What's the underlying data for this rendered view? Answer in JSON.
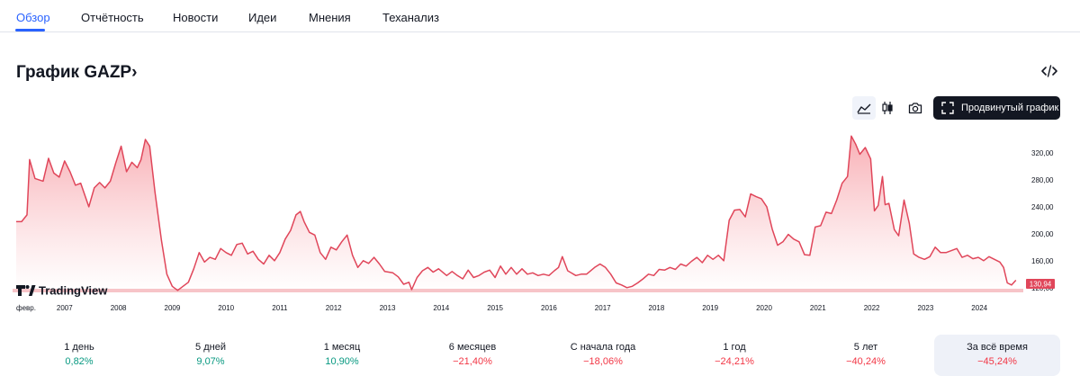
{
  "tabs": [
    {
      "label": "Обзор",
      "active": true
    },
    {
      "label": "Отчётность",
      "active": false
    },
    {
      "label": "Новости",
      "active": false
    },
    {
      "label": "Идеи",
      "active": false
    },
    {
      "label": "Мнения",
      "active": false
    },
    {
      "label": "Теханализ",
      "active": false
    }
  ],
  "header": {
    "title": "График GAZP",
    "chevron": "›",
    "embed_icon": "code-icon"
  },
  "toolbar": {
    "area_icon": "area-chart-icon",
    "candle_icon": "candlestick-icon",
    "camera_icon": "camera-icon",
    "advanced_label": "Продвинутый график",
    "advanced_icon": "fullscreen-icon"
  },
  "watermark": {
    "text": "TradingView"
  },
  "chart_data": {
    "type": "area",
    "series_name": "GAZP",
    "x_ticks": [
      "февр.",
      "2007",
      "2008",
      "2009",
      "2010",
      "2011",
      "2012",
      "2013",
      "2014",
      "2015",
      "2016",
      "2017",
      "2018",
      "2019",
      "2020",
      "2021",
      "2022",
      "2023",
      "2024"
    ],
    "y_ticks": [
      "320,00",
      "280,00",
      "240,00",
      "200,00",
      "160,00",
      "120,00"
    ],
    "ylim": [
      113,
      360
    ],
    "xlim": [
      2006.1,
      2024.75
    ],
    "last_value": "130,94",
    "colors": {
      "line": "#e0465a",
      "fill_top": "#f7a1a8",
      "fill_bottom": "#ffffff",
      "label_bg": "#e0465a",
      "label_text": "#ffffff"
    },
    "points": [
      [
        2006.1,
        218
      ],
      [
        2006.2,
        218
      ],
      [
        2006.3,
        228
      ],
      [
        2006.35,
        310
      ],
      [
        2006.45,
        282
      ],
      [
        2006.6,
        278
      ],
      [
        2006.7,
        312
      ],
      [
        2006.8,
        290
      ],
      [
        2006.9,
        284
      ],
      [
        2007.0,
        308
      ],
      [
        2007.1,
        292
      ],
      [
        2007.2,
        272
      ],
      [
        2007.3,
        275
      ],
      [
        2007.45,
        240
      ],
      [
        2007.55,
        268
      ],
      [
        2007.65,
        276
      ],
      [
        2007.75,
        268
      ],
      [
        2007.85,
        278
      ],
      [
        2007.95,
        305
      ],
      [
        2008.05,
        330
      ],
      [
        2008.15,
        292
      ],
      [
        2008.25,
        306
      ],
      [
        2008.35,
        298
      ],
      [
        2008.42,
        310
      ],
      [
        2008.5,
        340
      ],
      [
        2008.58,
        330
      ],
      [
        2008.68,
        262
      ],
      [
        2008.8,
        190
      ],
      [
        2008.9,
        140
      ],
      [
        2009.0,
        122
      ],
      [
        2009.1,
        116
      ],
      [
        2009.2,
        122
      ],
      [
        2009.3,
        128
      ],
      [
        2009.4,
        148
      ],
      [
        2009.5,
        172
      ],
      [
        2009.6,
        158
      ],
      [
        2009.7,
        165
      ],
      [
        2009.8,
        162
      ],
      [
        2009.9,
        178
      ],
      [
        2010.0,
        172
      ],
      [
        2010.1,
        168
      ],
      [
        2010.2,
        184
      ],
      [
        2010.3,
        186
      ],
      [
        2010.4,
        170
      ],
      [
        2010.5,
        174
      ],
      [
        2010.6,
        162
      ],
      [
        2010.7,
        155
      ],
      [
        2010.8,
        168
      ],
      [
        2010.9,
        160
      ],
      [
        2011.0,
        172
      ],
      [
        2011.1,
        192
      ],
      [
        2011.2,
        205
      ],
      [
        2011.3,
        228
      ],
      [
        2011.38,
        233
      ],
      [
        2011.45,
        218
      ],
      [
        2011.55,
        202
      ],
      [
        2011.65,
        198
      ],
      [
        2011.75,
        172
      ],
      [
        2011.85,
        162
      ],
      [
        2011.95,
        180
      ],
      [
        2012.05,
        176
      ],
      [
        2012.15,
        188
      ],
      [
        2012.25,
        198
      ],
      [
        2012.35,
        168
      ],
      [
        2012.45,
        150
      ],
      [
        2012.55,
        160
      ],
      [
        2012.65,
        156
      ],
      [
        2012.75,
        165
      ],
      [
        2012.85,
        155
      ],
      [
        2012.95,
        144
      ],
      [
        2013.1,
        142
      ],
      [
        2013.2,
        136
      ],
      [
        2013.3,
        125
      ],
      [
        2013.4,
        128
      ],
      [
        2013.45,
        117
      ],
      [
        2013.55,
        135
      ],
      [
        2013.65,
        145
      ],
      [
        2013.75,
        150
      ],
      [
        2013.85,
        143
      ],
      [
        2013.95,
        148
      ],
      [
        2014.1,
        138
      ],
      [
        2014.2,
        144
      ],
      [
        2014.3,
        138
      ],
      [
        2014.4,
        133
      ],
      [
        2014.5,
        146
      ],
      [
        2014.6,
        135
      ],
      [
        2014.7,
        138
      ],
      [
        2014.8,
        143
      ],
      [
        2014.9,
        146
      ],
      [
        2015.0,
        135
      ],
      [
        2015.1,
        152
      ],
      [
        2015.2,
        140
      ],
      [
        2015.3,
        150
      ],
      [
        2015.4,
        140
      ],
      [
        2015.5,
        148
      ],
      [
        2015.6,
        140
      ],
      [
        2015.7,
        142
      ],
      [
        2015.8,
        138
      ],
      [
        2015.9,
        140
      ],
      [
        2016.0,
        138
      ],
      [
        2016.1,
        145
      ],
      [
        2016.18,
        150
      ],
      [
        2016.25,
        166
      ],
      [
        2016.35,
        145
      ],
      [
        2016.5,
        138
      ],
      [
        2016.6,
        140
      ],
      [
        2016.7,
        140
      ],
      [
        2016.85,
        150
      ],
      [
        2016.95,
        155
      ],
      [
        2017.05,
        150
      ],
      [
        2017.15,
        140
      ],
      [
        2017.25,
        127
      ],
      [
        2017.35,
        124
      ],
      [
        2017.45,
        120
      ],
      [
        2017.55,
        122
      ],
      [
        2017.65,
        127
      ],
      [
        2017.75,
        133
      ],
      [
        2017.85,
        140
      ],
      [
        2017.95,
        138
      ],
      [
        2018.05,
        147
      ],
      [
        2018.15,
        146
      ],
      [
        2018.25,
        150
      ],
      [
        2018.35,
        147
      ],
      [
        2018.45,
        155
      ],
      [
        2018.55,
        152
      ],
      [
        2018.65,
        159
      ],
      [
        2018.75,
        165
      ],
      [
        2018.85,
        157
      ],
      [
        2018.95,
        168
      ],
      [
        2019.05,
        162
      ],
      [
        2019.15,
        168
      ],
      [
        2019.25,
        160
      ],
      [
        2019.35,
        220
      ],
      [
        2019.45,
        235
      ],
      [
        2019.55,
        236
      ],
      [
        2019.65,
        225
      ],
      [
        2019.75,
        259
      ],
      [
        2019.85,
        255
      ],
      [
        2019.95,
        252
      ],
      [
        2020.05,
        240
      ],
      [
        2020.15,
        207
      ],
      [
        2020.25,
        183
      ],
      [
        2020.35,
        188
      ],
      [
        2020.45,
        199
      ],
      [
        2020.55,
        192
      ],
      [
        2020.65,
        188
      ],
      [
        2020.75,
        169
      ],
      [
        2020.85,
        168
      ],
      [
        2020.95,
        210
      ],
      [
        2021.05,
        212
      ],
      [
        2021.15,
        232
      ],
      [
        2021.25,
        230
      ],
      [
        2021.35,
        250
      ],
      [
        2021.45,
        275
      ],
      [
        2021.55,
        285
      ],
      [
        2021.62,
        345
      ],
      [
        2021.7,
        333
      ],
      [
        2021.78,
        318
      ],
      [
        2021.88,
        328
      ],
      [
        2021.98,
        311
      ],
      [
        2022.05,
        234
      ],
      [
        2022.12,
        242
      ],
      [
        2022.2,
        285
      ],
      [
        2022.25,
        243
      ],
      [
        2022.32,
        245
      ],
      [
        2022.42,
        206
      ],
      [
        2022.5,
        197
      ],
      [
        2022.6,
        250
      ],
      [
        2022.7,
        215
      ],
      [
        2022.78,
        170
      ],
      [
        2022.88,
        165
      ],
      [
        2022.98,
        162
      ],
      [
        2023.08,
        166
      ],
      [
        2023.18,
        180
      ],
      [
        2023.28,
        172
      ],
      [
        2023.38,
        172
      ],
      [
        2023.48,
        175
      ],
      [
        2023.58,
        178
      ],
      [
        2023.68,
        165
      ],
      [
        2023.78,
        168
      ],
      [
        2023.88,
        163
      ],
      [
        2023.98,
        165
      ],
      [
        2024.08,
        160
      ],
      [
        2024.18,
        166
      ],
      [
        2024.28,
        162
      ],
      [
        2024.38,
        158
      ],
      [
        2024.45,
        150
      ],
      [
        2024.52,
        127
      ],
      [
        2024.6,
        124
      ],
      [
        2024.68,
        131
      ]
    ]
  },
  "periods": [
    {
      "label": "1 день",
      "value": "0,82%",
      "trend": "pos",
      "selected": false
    },
    {
      "label": "5 дней",
      "value": "9,07%",
      "trend": "pos",
      "selected": false
    },
    {
      "label": "1 месяц",
      "value": "10,90%",
      "trend": "pos",
      "selected": false
    },
    {
      "label": "6 месяцев",
      "value": "−21,40%",
      "trend": "neg",
      "selected": false
    },
    {
      "label": "С начала года",
      "value": "−18,06%",
      "trend": "neg",
      "selected": false
    },
    {
      "label": "1 год",
      "value": "−24,21%",
      "trend": "neg",
      "selected": false
    },
    {
      "label": "5 лет",
      "value": "−40,24%",
      "trend": "neg",
      "selected": false
    },
    {
      "label": "За всё время",
      "value": "−45,24%",
      "trend": "neg",
      "selected": true
    }
  ]
}
